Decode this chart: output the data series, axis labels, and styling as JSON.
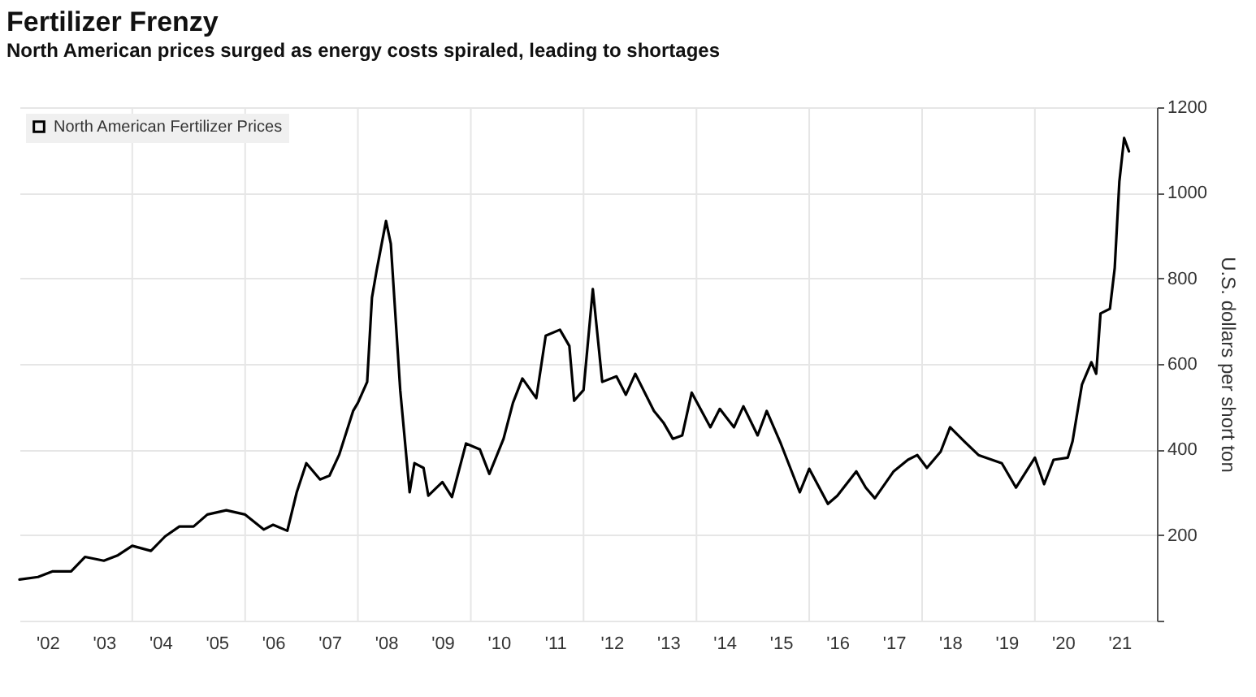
{
  "chart_data": {
    "type": "line",
    "title": "Fertilizer Frenzy",
    "subtitle": "North American prices surged as energy costs spiraled, leading to shortages",
    "ylabel": "U.S. dollars per short ton",
    "x": [
      "2002-01",
      "2002-05",
      "2002-08",
      "2002-12",
      "2003-03",
      "2003-07",
      "2003-10",
      "2004-01",
      "2004-05",
      "2004-08",
      "2004-11",
      "2005-02",
      "2005-05",
      "2005-09",
      "2006-01",
      "2006-05",
      "2006-07",
      "2006-10",
      "2006-12",
      "2007-02",
      "2007-05",
      "2007-07",
      "2007-09",
      "2007-12",
      "2008-01",
      "2008-03",
      "2008-04",
      "2008-05",
      "2008-07",
      "2008-08",
      "2008-10",
      "2008-12",
      "2009-01",
      "2009-03",
      "2009-04",
      "2009-07",
      "2009-09",
      "2009-12",
      "2010-03",
      "2010-05",
      "2010-08",
      "2010-10",
      "2010-12",
      "2011-03",
      "2011-05",
      "2011-08",
      "2011-10",
      "2011-11",
      "2012-01",
      "2012-03",
      "2012-05",
      "2012-08",
      "2012-10",
      "2012-12",
      "2013-04",
      "2013-06",
      "2013-08",
      "2013-10",
      "2013-12",
      "2014-04",
      "2014-06",
      "2014-09",
      "2014-11",
      "2015-02",
      "2015-04",
      "2015-07",
      "2015-11",
      "2016-01",
      "2016-05",
      "2016-07",
      "2016-11",
      "2017-01",
      "2017-03",
      "2017-07",
      "2017-10",
      "2017-12",
      "2018-02",
      "2018-05",
      "2018-07",
      "2018-10",
      "2019-01",
      "2019-06",
      "2019-09",
      "2020-01",
      "2020-03",
      "2020-05",
      "2020-08",
      "2020-09",
      "2020-11",
      "2021-01",
      "2021-02",
      "2021-03",
      "2021-05",
      "2021-06",
      "2021-07",
      "2021-08",
      "2021-09"
    ],
    "series": [
      {
        "name": "North American Fertilizer Prices",
        "color": "#000000",
        "values": [
          96,
          102,
          115,
          115,
          149,
          140,
          153,
          175,
          163,
          197,
          220,
          220,
          248,
          258,
          248,
          213,
          224,
          210,
          300,
          368,
          330,
          339,
          387,
          490,
          509,
          558,
          755,
          818,
          934,
          881,
          539,
          300,
          368,
          357,
          292,
          324,
          289,
          414,
          400,
          343,
          425,
          509,
          566,
          520,
          666,
          680,
          642,
          514,
          539,
          775,
          558,
          571,
          528,
          577,
          490,
          463,
          425,
          433,
          533,
          452,
          495,
          452,
          501,
          433,
          490,
          414,
          300,
          355,
          273,
          292,
          349,
          311,
          286,
          349,
          376,
          387,
          357,
          395,
          452,
          419,
          387,
          368,
          311,
          381,
          319,
          376,
          381,
          419,
          552,
          604,
          577,
          718,
          729,
          824,
          1026,
          1128,
          1097
        ]
      }
    ],
    "xlim": [
      "2002-01",
      "2022-03"
    ],
    "xticks": [
      {
        "value": "2002-07",
        "label": "'02"
      },
      {
        "value": "2003-07",
        "label": "'03"
      },
      {
        "value": "2004-07",
        "label": "'04"
      },
      {
        "value": "2005-07",
        "label": "'05"
      },
      {
        "value": "2006-07",
        "label": "'06"
      },
      {
        "value": "2007-07",
        "label": "'07"
      },
      {
        "value": "2008-07",
        "label": "'08"
      },
      {
        "value": "2009-07",
        "label": "'09"
      },
      {
        "value": "2010-07",
        "label": "'10"
      },
      {
        "value": "2011-07",
        "label": "'11"
      },
      {
        "value": "2012-07",
        "label": "'12"
      },
      {
        "value": "2013-07",
        "label": "'13"
      },
      {
        "value": "2014-07",
        "label": "'14"
      },
      {
        "value": "2015-07",
        "label": "'15"
      },
      {
        "value": "2016-07",
        "label": "'16"
      },
      {
        "value": "2017-07",
        "label": "'17"
      },
      {
        "value": "2018-07",
        "label": "'18"
      },
      {
        "value": "2019-07",
        "label": "'19"
      },
      {
        "value": "2020-07",
        "label": "'20"
      },
      {
        "value": "2021-07",
        "label": "'21"
      },
      {
        "value": "2004-01",
        "label": null
      },
      {
        "value": "2006-01",
        "label": null
      },
      {
        "value": "2008-01",
        "label": null
      },
      {
        "value": "2010-01",
        "label": null
      },
      {
        "value": "2012-01",
        "label": null
      },
      {
        "value": "2014-01",
        "label": null
      },
      {
        "value": "2016-01",
        "label": null
      },
      {
        "value": "2018-01",
        "label": null
      },
      {
        "value": "2020-01",
        "label": null
      }
    ],
    "ylim": [
      0,
      1200
    ],
    "yticks": [
      {
        "value": 0,
        "label": null
      },
      200,
      400,
      600,
      800,
      1000,
      1200
    ],
    "grid": true,
    "legend": "top left",
    "marker": "none",
    "line_style": "solid"
  }
}
